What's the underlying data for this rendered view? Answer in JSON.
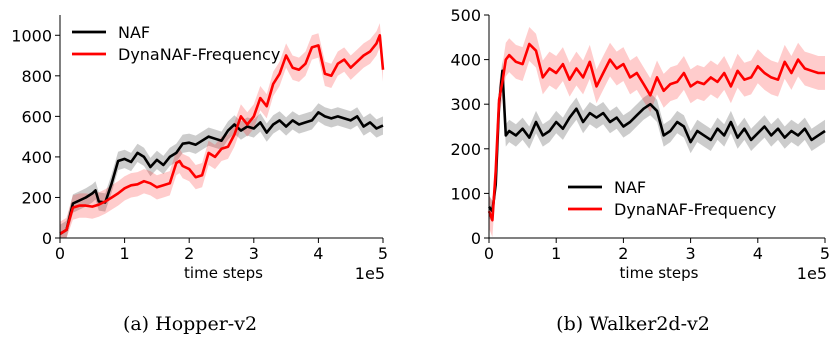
{
  "chart_data": [
    {
      "type": "line",
      "caption": "(a)  Hopper-v2",
      "xlabel": "time steps",
      "x_scale_label": "1e5",
      "xlim": [
        0,
        5
      ],
      "ylim": [
        0,
        1100
      ],
      "x_ticks": [
        0,
        1,
        2,
        3,
        4,
        5
      ],
      "y_ticks": [
        0,
        200,
        400,
        600,
        800,
        1000
      ],
      "legend_position": "top-left",
      "colors": {
        "NAF": "#000000",
        "DynaNAF-Frequency": "#ff0000"
      },
      "series": [
        {
          "name": "NAF",
          "x": [
            0,
            0.1,
            0.2,
            0.3,
            0.4,
            0.5,
            0.55,
            0.6,
            0.7,
            0.8,
            0.9,
            1.0,
            1.1,
            1.2,
            1.3,
            1.4,
            1.5,
            1.6,
            1.7,
            1.8,
            1.9,
            2.0,
            2.1,
            2.2,
            2.3,
            2.4,
            2.5,
            2.6,
            2.7,
            2.8,
            2.9,
            3.0,
            3.1,
            3.2,
            3.3,
            3.4,
            3.5,
            3.6,
            3.7,
            3.8,
            3.9,
            4.0,
            4.1,
            4.2,
            4.3,
            4.4,
            4.5,
            4.6,
            4.7,
            4.8,
            4.9,
            5.0
          ],
          "values": [
            20,
            40,
            170,
            185,
            200,
            220,
            235,
            180,
            175,
            270,
            380,
            390,
            375,
            420,
            400,
            350,
            385,
            360,
            400,
            420,
            465,
            470,
            460,
            480,
            500,
            490,
            480,
            530,
            560,
            530,
            550,
            540,
            570,
            520,
            560,
            580,
            550,
            580,
            560,
            570,
            580,
            620,
            600,
            590,
            600,
            590,
            580,
            600,
            550,
            570,
            540,
            555
          ],
          "band": 45
        },
        {
          "name": "DynaNAF-Frequency",
          "x": [
            0,
            0.1,
            0.2,
            0.3,
            0.4,
            0.5,
            0.6,
            0.7,
            0.8,
            0.9,
            1.0,
            1.1,
            1.2,
            1.3,
            1.4,
            1.5,
            1.6,
            1.7,
            1.8,
            1.85,
            1.9,
            2.0,
            2.1,
            2.2,
            2.3,
            2.4,
            2.5,
            2.6,
            2.7,
            2.8,
            2.9,
            3.0,
            3.1,
            3.2,
            3.3,
            3.4,
            3.5,
            3.6,
            3.7,
            3.8,
            3.9,
            4.0,
            4.1,
            4.2,
            4.3,
            4.4,
            4.5,
            4.6,
            4.7,
            4.8,
            4.9,
            4.95,
            5.0
          ],
          "values": [
            20,
            40,
            150,
            160,
            160,
            155,
            165,
            180,
            200,
            220,
            245,
            260,
            265,
            280,
            270,
            250,
            260,
            270,
            370,
            380,
            355,
            340,
            300,
            310,
            420,
            400,
            440,
            450,
            510,
            600,
            560,
            600,
            690,
            650,
            760,
            810,
            900,
            840,
            830,
            860,
            940,
            950,
            810,
            800,
            860,
            880,
            840,
            870,
            900,
            920,
            960,
            1000,
            830
          ],
          "band": 60
        }
      ]
    },
    {
      "type": "line",
      "caption": "(b)  Walker2d-v2",
      "xlabel": "time steps",
      "x_scale_label": "1e5",
      "xlim": [
        0,
        5
      ],
      "ylim": [
        0,
        500
      ],
      "x_ticks": [
        0,
        1,
        2,
        3,
        4,
        5
      ],
      "y_ticks": [
        0,
        100,
        200,
        300,
        400,
        500
      ],
      "legend_position": "bottom-right",
      "colors": {
        "NAF": "#000000",
        "DynaNAF-Frequency": "#ff0000"
      },
      "series": [
        {
          "name": "NAF",
          "x": [
            0,
            0.05,
            0.1,
            0.15,
            0.2,
            0.25,
            0.3,
            0.4,
            0.5,
            0.6,
            0.7,
            0.8,
            0.9,
            1.0,
            1.1,
            1.2,
            1.3,
            1.4,
            1.5,
            1.6,
            1.7,
            1.8,
            1.9,
            2.0,
            2.1,
            2.2,
            2.3,
            2.4,
            2.5,
            2.6,
            2.7,
            2.8,
            2.9,
            3.0,
            3.1,
            3.2,
            3.3,
            3.4,
            3.5,
            3.6,
            3.7,
            3.8,
            3.9,
            4.0,
            4.1,
            4.2,
            4.3,
            4.4,
            4.5,
            4.6,
            4.7,
            4.8,
            4.9,
            5.0
          ],
          "values": [
            70,
            60,
            120,
            300,
            375,
            230,
            240,
            230,
            245,
            225,
            260,
            230,
            240,
            260,
            245,
            270,
            290,
            260,
            280,
            270,
            280,
            260,
            270,
            250,
            260,
            275,
            290,
            300,
            285,
            230,
            240,
            260,
            250,
            215,
            240,
            230,
            220,
            245,
            230,
            260,
            225,
            245,
            220,
            235,
            250,
            230,
            245,
            225,
            240,
            230,
            245,
            220,
            230,
            240
          ],
          "band": 25
        },
        {
          "name": "DynaNAF-Frequency",
          "x": [
            0,
            0.05,
            0.1,
            0.15,
            0.2,
            0.25,
            0.3,
            0.4,
            0.5,
            0.6,
            0.7,
            0.8,
            0.9,
            1.0,
            1.1,
            1.2,
            1.3,
            1.4,
            1.5,
            1.6,
            1.7,
            1.8,
            1.9,
            2.0,
            2.1,
            2.2,
            2.3,
            2.4,
            2.5,
            2.6,
            2.7,
            2.8,
            2.9,
            3.0,
            3.1,
            3.2,
            3.3,
            3.4,
            3.5,
            3.6,
            3.7,
            3.8,
            3.9,
            4.0,
            4.1,
            4.2,
            4.3,
            4.4,
            4.5,
            4.6,
            4.7,
            4.8,
            4.9,
            5.0
          ],
          "values": [
            60,
            40,
            150,
            310,
            350,
            400,
            410,
            395,
            390,
            435,
            420,
            360,
            380,
            370,
            390,
            355,
            380,
            360,
            395,
            340,
            370,
            400,
            380,
            390,
            360,
            370,
            345,
            320,
            360,
            330,
            345,
            350,
            370,
            340,
            350,
            345,
            360,
            350,
            370,
            340,
            375,
            355,
            360,
            385,
            370,
            360,
            355,
            395,
            370,
            400,
            380,
            375,
            370,
            370
          ],
          "band": 38
        }
      ]
    }
  ]
}
